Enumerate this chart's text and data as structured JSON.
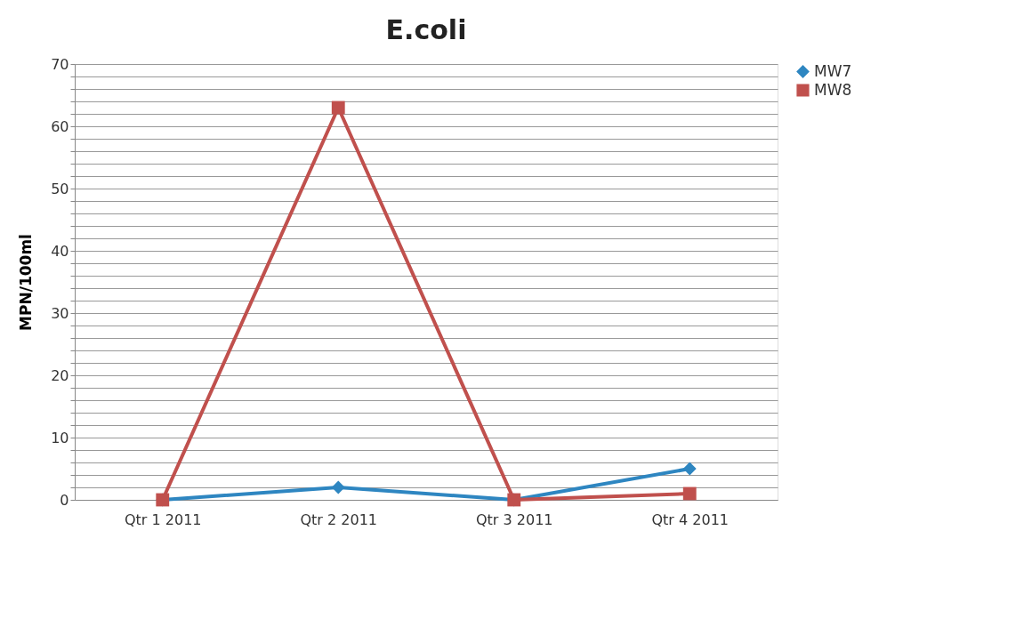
{
  "chart_data": {
    "type": "line",
    "title": "E.coli",
    "ylabel": "MPN/100ml",
    "categories": [
      "Qtr 1 2011",
      "Qtr 2 2011",
      "Qtr 3 2011",
      "Qtr 4 2011"
    ],
    "series": [
      {
        "name": "MW7",
        "color": "#2e86c1",
        "marker": "diamond",
        "values": [
          0,
          2,
          0,
          5
        ]
      },
      {
        "name": "MW8",
        "color": "#c0504d",
        "marker": "square",
        "values": [
          0,
          63,
          0,
          1
        ]
      }
    ],
    "ylim": [
      0,
      70
    ],
    "yticks": [
      0,
      {
        "value": 2,
        "label": null
      },
      {
        "value": 4,
        "label": null
      },
      {
        "value": 6,
        "label": null
      },
      {
        "value": 8,
        "label": null
      },
      10,
      {
        "value": 12,
        "label": null
      },
      {
        "value": 14,
        "label": null
      },
      {
        "value": 16,
        "label": null
      },
      {
        "value": 18,
        "label": null
      },
      20,
      {
        "value": 22,
        "label": null
      },
      {
        "value": 24,
        "label": null
      },
      {
        "value": 26,
        "label": null
      },
      {
        "value": 28,
        "label": null
      },
      30,
      {
        "value": 32,
        "label": null
      },
      {
        "value": 34,
        "label": null
      },
      {
        "value": 36,
        "label": null
      },
      {
        "value": 38,
        "label": null
      },
      40,
      {
        "value": 42,
        "label": null
      },
      {
        "value": 44,
        "label": null
      },
      {
        "value": 46,
        "label": null
      },
      {
        "value": 48,
        "label": null
      },
      50,
      {
        "value": 52,
        "label": null
      },
      {
        "value": 54,
        "label": null
      },
      {
        "value": 56,
        "label": null
      },
      {
        "value": 58,
        "label": null
      },
      60,
      {
        "value": 62,
        "label": null
      },
      {
        "value": 64,
        "label": null
      },
      {
        "value": 66,
        "label": null
      },
      {
        "value": 68,
        "label": null
      },
      70
    ],
    "grid": "y",
    "legend": "right",
    "line_style": "solid"
  }
}
